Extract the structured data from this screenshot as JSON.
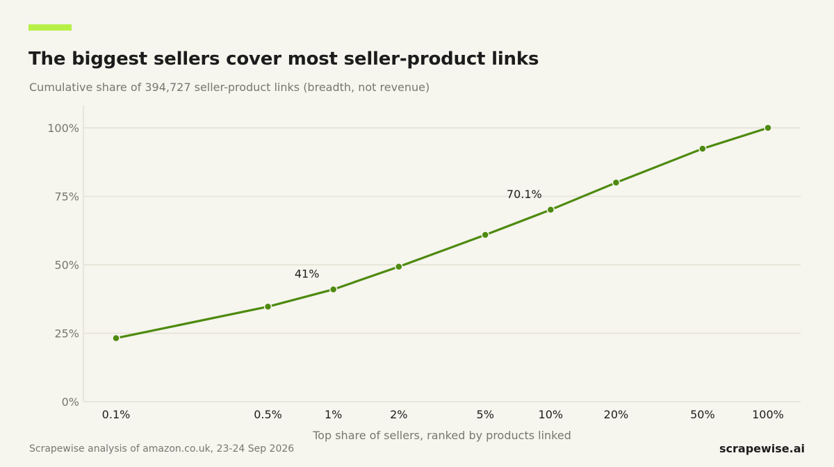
{
  "header": {
    "title": "The biggest sellers cover most seller-product links",
    "subtitle": "Cumulative share of 394,727 seller-product links (breadth, not revenue)"
  },
  "footer": {
    "source": "Scrapewise analysis of amazon.co.uk, 23-24 Sep 2026",
    "brand": "scrapewise.ai"
  },
  "colors": {
    "accent": "#b6f046",
    "line": "#4d8a0e",
    "grid": "#e3e2d4",
    "axis_text": "#77776f",
    "tick_text": "#1c1c1c",
    "background": "#f6f5ee"
  },
  "chart_data": {
    "type": "line",
    "x_scale": "log",
    "categories": [
      "0.1%",
      "0.5%",
      "1%",
      "2%",
      "5%",
      "10%",
      "20%",
      "50%",
      "100%"
    ],
    "x": [
      0.1,
      0.5,
      1,
      2,
      5,
      10,
      20,
      50,
      100
    ],
    "series": [
      {
        "values": [
          23.2,
          34.7,
          41.0,
          49.3,
          60.9,
          70.1,
          80.0,
          92.4,
          100.0
        ]
      }
    ],
    "annotations": [
      {
        "x": 1,
        "label": "41%"
      },
      {
        "x": 10,
        "label": "70.1%"
      }
    ],
    "xlabel": "Top share of sellers, ranked by products linked",
    "ylabel": "",
    "ylim": [
      0,
      100
    ],
    "yticks": [
      0,
      25,
      50,
      75,
      100
    ],
    "ytick_labels": [
      "0%",
      "25%",
      "50%",
      "75%",
      "100%"
    ],
    "grid": true,
    "legend": "none"
  }
}
